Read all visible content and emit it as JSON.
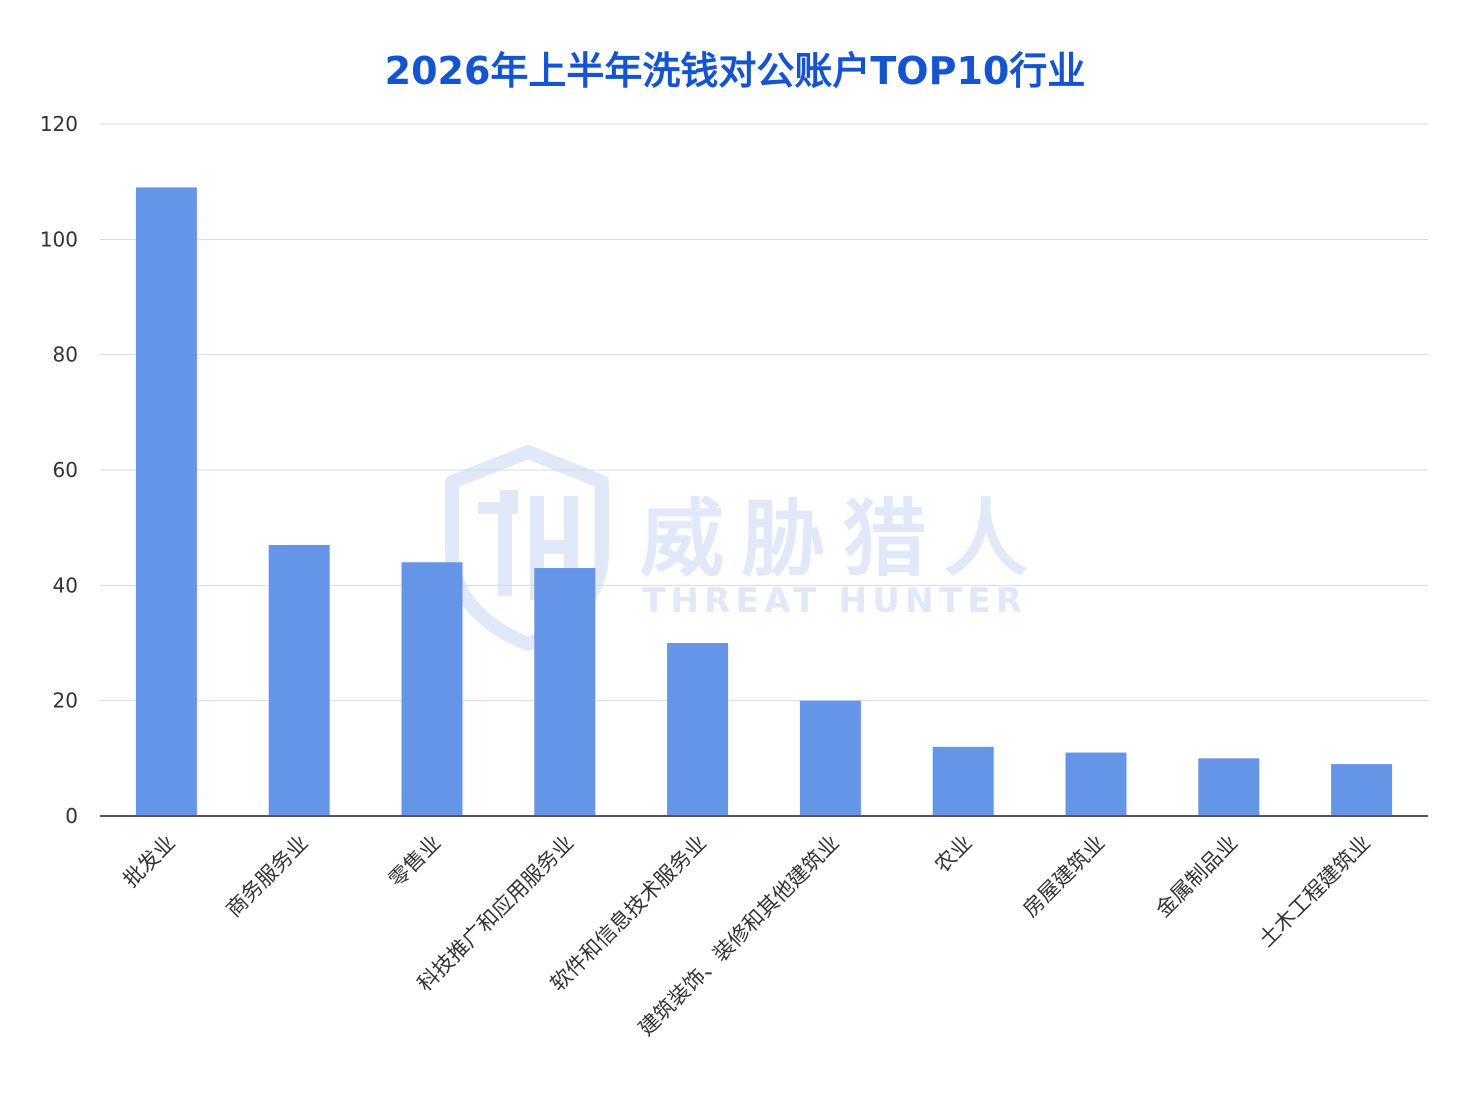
{
  "chart_data": {
    "type": "bar",
    "title": "2026年上半年洗钱对公账户TOP10行业",
    "xlabel": "",
    "ylabel": "",
    "ylim": [
      0,
      120
    ],
    "yticks": [
      0,
      20,
      40,
      60,
      80,
      100,
      120
    ],
    "grid": true,
    "legend": "none",
    "categories": [
      "批发业",
      "商务服务业",
      "零售业",
      "科技推广和应用服务业",
      "软件和信息技术服务业",
      "建筑装饰、装修和其他建筑业",
      "农业",
      "房屋建筑业",
      "金属制品业",
      "土木工程建筑业"
    ],
    "series": [
      {
        "values": [
          109,
          47,
          44,
          43,
          30,
          20,
          12,
          11,
          10,
          9
        ]
      }
    ]
  },
  "colors": {
    "title": "#1554D1",
    "bar": "#6495E6",
    "grid": "#DCDCDC",
    "axis": "#555555",
    "tick_text": "#333333",
    "watermark": "#C9D6F2"
  },
  "watermark": {
    "logo_icon": "shield-th-logo-icon",
    "cn_text": "威胁猎人",
    "en_text": "THREAT HUNTER"
  }
}
